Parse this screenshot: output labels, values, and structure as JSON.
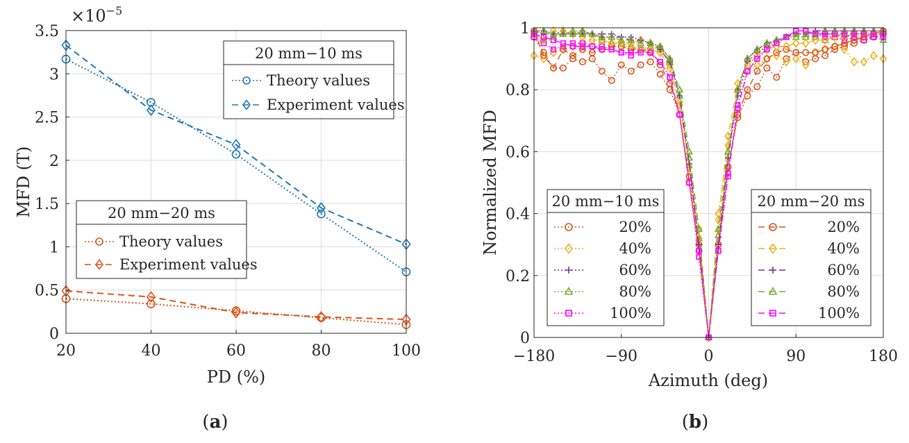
{
  "colors": {
    "blue": "#1f77b4",
    "orange": "#d95319",
    "gold": "#edb120",
    "purple": "#7e2f8e",
    "green": "#77ac30",
    "magenta": "#ff00ff",
    "grid": "#dcdcdc",
    "axis": "#262626"
  },
  "panel_a": {
    "caption": "a",
    "exponent_label": "×10",
    "exponent_power": "−5"
  },
  "panel_b": {
    "caption": "b"
  },
  "chart_data": [
    {
      "type": "line",
      "panel": "a",
      "xlabel": "PD (%)",
      "ylabel": "MFD (T)",
      "xlim": [
        20,
        100
      ],
      "ylim": [
        0,
        3.5
      ],
      "y_scale_note": "×10^−5",
      "x_ticks": [
        20,
        40,
        60,
        80,
        100
      ],
      "x_tick_labels": [
        "20",
        "40",
        "60",
        "80",
        "100"
      ],
      "y_ticks": [
        0,
        0.5,
        1,
        1.5,
        2,
        2.5,
        3,
        3.5
      ],
      "y_tick_labels": [
        "0",
        "0.5",
        "1",
        "1.5",
        "2",
        "2.5",
        "3",
        "3.5"
      ],
      "grid": true,
      "x": [
        20,
        40,
        60,
        80,
        100
      ],
      "legends": [
        {
          "title": "20 mm−10 ms",
          "position": "top-right",
          "entries": [
            {
              "label": "Theory values",
              "series": 0
            },
            {
              "label": "Experiment values",
              "series": 1
            }
          ]
        },
        {
          "title": "20 mm−20 ms",
          "position": "lower-left",
          "entries": [
            {
              "label": "Theory values",
              "series": 2
            },
            {
              "label": "Experiment values",
              "series": 3
            }
          ]
        }
      ],
      "series": [
        {
          "name": "20 mm−10 ms Theory values",
          "color": "blue",
          "dash": "dotted",
          "marker": "circle",
          "values": [
            3.17,
            2.67,
            2.07,
            1.38,
            0.71
          ]
        },
        {
          "name": "20 mm−10 ms Experiment values",
          "color": "blue",
          "dash": "dashed",
          "marker": "diamond",
          "values": [
            3.33,
            2.58,
            2.18,
            1.45,
            1.03
          ]
        },
        {
          "name": "20 mm−20 ms Theory values",
          "color": "orange",
          "dash": "dotted",
          "marker": "circle",
          "values": [
            0.4,
            0.34,
            0.26,
            0.18,
            0.1
          ]
        },
        {
          "name": "20 mm−20 ms Experiment values",
          "color": "orange",
          "dash": "dashed",
          "marker": "diamond",
          "values": [
            0.49,
            0.42,
            0.24,
            0.19,
            0.16
          ]
        }
      ]
    },
    {
      "type": "line",
      "panel": "b",
      "xlabel": "Azimuth (deg)",
      "ylabel": "Normalized MFD",
      "xlim": [
        -180,
        180
      ],
      "ylim": [
        0,
        1
      ],
      "x_ticks": [
        -180,
        -90,
        0,
        90,
        180
      ],
      "x_tick_labels": [
        "−180",
        "−90",
        "0",
        "90",
        "180"
      ],
      "y_ticks": [
        0,
        0.2,
        0.4,
        0.6,
        0.8,
        1
      ],
      "y_tick_labels": [
        "0",
        "0.2",
        "0.4",
        "0.6",
        "0.8",
        "1"
      ],
      "grid": true,
      "x": [
        -180,
        -170,
        -160,
        -150,
        -140,
        -130,
        -120,
        -110,
        -100,
        -90,
        -80,
        -70,
        -60,
        -50,
        -40,
        -30,
        -20,
        -10,
        0,
        10,
        20,
        30,
        40,
        50,
        60,
        70,
        80,
        90,
        100,
        110,
        120,
        130,
        140,
        150,
        160,
        170,
        180
      ],
      "legends": [
        {
          "title": "20 mm−10 ms",
          "position": "lower-left",
          "entries": [
            {
              "label": "20%",
              "series": 0
            },
            {
              "label": "40%",
              "series": 1
            },
            {
              "label": "60%",
              "series": 2
            },
            {
              "label": "80%",
              "series": 3
            },
            {
              "label": "100%",
              "series": 4
            }
          ]
        },
        {
          "title": "20 mm−20 ms",
          "position": "lower-right",
          "entries": [
            {
              "label": "20%",
              "series": 5
            },
            {
              "label": "40%",
              "series": 6
            },
            {
              "label": "60%",
              "series": 7
            },
            {
              "label": "80%",
              "series": 8
            },
            {
              "label": "100%",
              "series": 9
            }
          ]
        }
      ],
      "series": [
        {
          "name": "20 mm−10 ms 20%",
          "color": "orange",
          "dash": "dotted",
          "marker": "circle",
          "values": [
            0.97,
            0.92,
            0.87,
            0.87,
            0.9,
            0.89,
            0.9,
            0.86,
            0.83,
            0.88,
            0.86,
            0.88,
            0.89,
            0.85,
            0.8,
            0.72,
            0.52,
            0.3,
            0.0,
            0.3,
            0.55,
            0.71,
            0.78,
            0.81,
            0.87,
            0.84,
            0.9,
            0.92,
            0.89,
            0.9,
            0.91,
            0.93,
            0.94,
            0.95,
            0.96,
            0.97,
            0.98
          ]
        },
        {
          "name": "20 mm−10 ms 40%",
          "color": "gold",
          "dash": "dotted",
          "marker": "diamond",
          "values": [
            0.91,
            0.9,
            0.92,
            0.93,
            0.94,
            0.95,
            0.96,
            0.96,
            0.95,
            0.95,
            0.95,
            0.96,
            0.95,
            0.93,
            0.88,
            0.75,
            0.55,
            0.35,
            0.0,
            0.4,
            0.62,
            0.8,
            0.86,
            0.88,
            0.9,
            0.91,
            0.89,
            0.9,
            0.88,
            0.92,
            0.93,
            0.94,
            0.93,
            0.89,
            0.89,
            0.91,
            0.9
          ]
        },
        {
          "name": "20 mm−10 ms 60%",
          "color": "purple",
          "dash": "dotted",
          "marker": "plus",
          "values": [
            0.99,
            0.98,
            0.98,
            0.99,
            0.98,
            0.99,
            0.98,
            0.98,
            0.98,
            0.97,
            0.97,
            0.96,
            0.95,
            0.94,
            0.9,
            0.78,
            0.56,
            0.3,
            0.0,
            0.3,
            0.58,
            0.78,
            0.89,
            0.92,
            0.94,
            0.96,
            0.97,
            0.98,
            0.98,
            0.98,
            0.98,
            0.98,
            0.97,
            0.98,
            0.98,
            0.98,
            0.98
          ]
        },
        {
          "name": "20 mm−10 ms 80%",
          "color": "green",
          "dash": "dotted",
          "marker": "triangle",
          "values": [
            0.98,
            0.96,
            0.97,
            0.98,
            0.99,
            0.99,
            0.98,
            0.96,
            0.95,
            0.95,
            0.94,
            0.93,
            0.94,
            0.93,
            0.89,
            0.78,
            0.58,
            0.32,
            0.0,
            0.33,
            0.6,
            0.8,
            0.9,
            0.93,
            0.95,
            0.96,
            0.97,
            0.97,
            0.97,
            0.97,
            0.96,
            0.97,
            0.98,
            0.97,
            0.97,
            0.97,
            0.96
          ]
        },
        {
          "name": "20 mm−10 ms 100%",
          "color": "magenta",
          "dash": "dotted",
          "marker": "square",
          "values": [
            0.97,
            0.95,
            0.93,
            0.94,
            0.95,
            0.95,
            0.94,
            0.94,
            0.93,
            0.92,
            0.91,
            0.93,
            0.92,
            0.89,
            0.84,
            0.72,
            0.5,
            0.26,
            0.0,
            0.28,
            0.53,
            0.75,
            0.86,
            0.9,
            0.93,
            0.95,
            0.97,
            0.99,
            0.99,
            0.98,
            0.97,
            0.97,
            0.96,
            0.97,
            0.96,
            0.97,
            0.97
          ]
        },
        {
          "name": "20 mm−20 ms 20%",
          "color": "orange",
          "dash": "dashed",
          "marker": "circle",
          "values": [
            0.99,
            0.91,
            0.87,
            0.93,
            0.91,
            0.93,
            0.92,
            0.93,
            0.94,
            0.94,
            0.93,
            0.93,
            0.92,
            0.88,
            0.82,
            0.72,
            0.5,
            0.28,
            0.0,
            0.3,
            0.55,
            0.72,
            0.8,
            0.86,
            0.9,
            0.92,
            0.93,
            0.92,
            0.92,
            0.92,
            0.93,
            0.94,
            0.95,
            0.96,
            0.97,
            0.98,
            0.99
          ]
        },
        {
          "name": "20 mm−20 ms 40%",
          "color": "gold",
          "dash": "dashed",
          "marker": "diamond",
          "values": [
            0.98,
            0.96,
            0.99,
            0.99,
            0.98,
            0.97,
            0.96,
            0.96,
            0.95,
            0.95,
            0.94,
            0.93,
            0.93,
            0.92,
            0.87,
            0.76,
            0.55,
            0.32,
            0.0,
            0.38,
            0.65,
            0.82,
            0.88,
            0.91,
            0.93,
            0.94,
            0.94,
            0.95,
            0.95,
            0.96,
            0.96,
            0.97,
            0.97,
            0.98,
            0.98,
            0.98,
            0.98
          ]
        },
        {
          "name": "20 mm−20 ms 60%",
          "color": "purple",
          "dash": "dashed",
          "marker": "plus",
          "values": [
            0.99,
            0.99,
            0.98,
            0.98,
            0.98,
            0.98,
            0.98,
            0.97,
            0.97,
            0.97,
            0.96,
            0.96,
            0.95,
            0.93,
            0.89,
            0.78,
            0.56,
            0.3,
            0.0,
            0.3,
            0.58,
            0.8,
            0.9,
            0.93,
            0.95,
            0.96,
            0.97,
            0.98,
            0.98,
            0.99,
            0.99,
            0.99,
            0.99,
            0.99,
            0.99,
            0.99,
            0.99
          ]
        },
        {
          "name": "20 mm−20 ms 80%",
          "color": "green",
          "dash": "dashed",
          "marker": "triangle",
          "values": [
            0.99,
            0.99,
            0.98,
            0.98,
            0.98,
            0.98,
            0.98,
            0.97,
            0.97,
            0.96,
            0.96,
            0.95,
            0.95,
            0.94,
            0.9,
            0.8,
            0.6,
            0.35,
            0.0,
            0.35,
            0.6,
            0.8,
            0.9,
            0.93,
            0.95,
            0.96,
            0.97,
            0.98,
            0.98,
            0.98,
            0.99,
            0.99,
            0.99,
            0.99,
            0.99,
            0.99,
            0.99
          ]
        },
        {
          "name": "20 mm−20 ms 100%",
          "color": "magenta",
          "dash": "dashed",
          "marker": "square",
          "values": [
            0.98,
            0.97,
            0.96,
            0.95,
            0.94,
            0.94,
            0.94,
            0.93,
            0.93,
            0.92,
            0.92,
            0.92,
            0.92,
            0.89,
            0.84,
            0.72,
            0.5,
            0.28,
            0.0,
            0.28,
            0.52,
            0.74,
            0.86,
            0.9,
            0.93,
            0.95,
            0.97,
            0.99,
            0.99,
            0.98,
            0.98,
            0.98,
            0.98,
            0.98,
            0.98,
            0.98,
            0.98
          ]
        }
      ]
    }
  ]
}
